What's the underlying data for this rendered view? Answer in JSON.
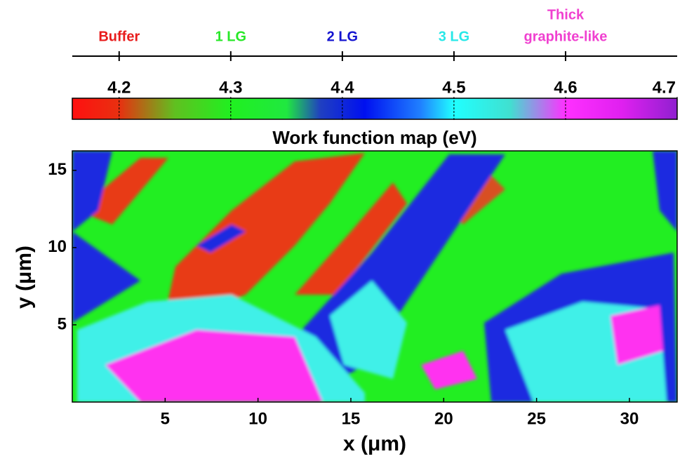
{
  "chart_data": {
    "type": "heatmap",
    "title": "Work function map (eV)",
    "xlabel": "x (μm)",
    "ylabel": "y (μm)",
    "xlim": [
      0,
      32.57
    ],
    "xticks": [
      5,
      10,
      15,
      20,
      25,
      30
    ],
    "ylim": [
      0,
      16.26
    ],
    "yticks": [
      5,
      10,
      15
    ],
    "colorbar": {
      "lim": [
        4.158,
        4.7
      ],
      "ticks": [
        4.2,
        4.3,
        4.4,
        4.5,
        4.6,
        4.7
      ],
      "colormap": [
        {
          "value": 4.158,
          "color": "#ff1010"
        },
        {
          "value": 4.2,
          "color": "#e83010"
        },
        {
          "value": 4.25,
          "color": "#60c020"
        },
        {
          "value": 4.3,
          "color": "#20f020"
        },
        {
          "value": 4.35,
          "color": "#20e840"
        },
        {
          "value": 4.38,
          "color": "#2040c0"
        },
        {
          "value": 4.42,
          "color": "#0010f0"
        },
        {
          "value": 4.47,
          "color": "#2080ff"
        },
        {
          "value": 4.5,
          "color": "#20ffff"
        },
        {
          "value": 4.55,
          "color": "#40e0d0"
        },
        {
          "value": 4.6,
          "color": "#ff30ff"
        },
        {
          "value": 4.65,
          "color": "#e020f0"
        },
        {
          "value": 4.7,
          "color": "#9020d0"
        }
      ]
    },
    "layers": [
      {
        "label": [
          "Buffer"
        ],
        "value": 4.2,
        "color": "#e81c1c"
      },
      {
        "label": [
          "1 LG"
        ],
        "value": 4.3,
        "color": "#28e828"
      },
      {
        "label": [
          "2 LG"
        ],
        "value": 4.4,
        "color": "#1414d0"
      },
      {
        "label": [
          "3 LG"
        ],
        "value": 4.5,
        "color": "#28e8e8"
      },
      {
        "label": [
          "Thick",
          "graphite-like"
        ],
        "value": 4.6,
        "color": "#f040d0"
      }
    ]
  }
}
